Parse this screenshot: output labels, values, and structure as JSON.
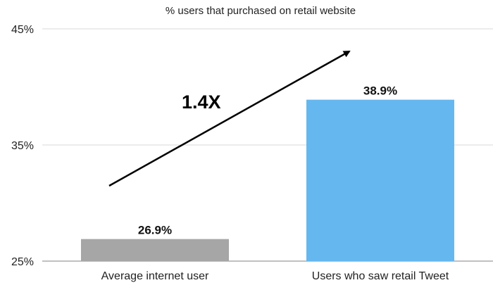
{
  "chart_data": {
    "type": "bar",
    "title": "% users that purchased on retail website",
    "categories": [
      "Average internet user",
      "Users who saw retail Tweet"
    ],
    "values": [
      26.9,
      38.9
    ],
    "value_labels": [
      "26.9%",
      "38.9%"
    ],
    "colors": [
      "#a6a6a6",
      "#65b8ef"
    ],
    "ylim": [
      25,
      45
    ],
    "yticks": [
      25,
      35,
      45
    ],
    "ytick_labels": [
      "25%",
      "35%",
      "45%"
    ],
    "grid": true,
    "annotation": {
      "text": "1.4X",
      "arrow": "rising arrow from the first bar toward the second bar"
    }
  }
}
